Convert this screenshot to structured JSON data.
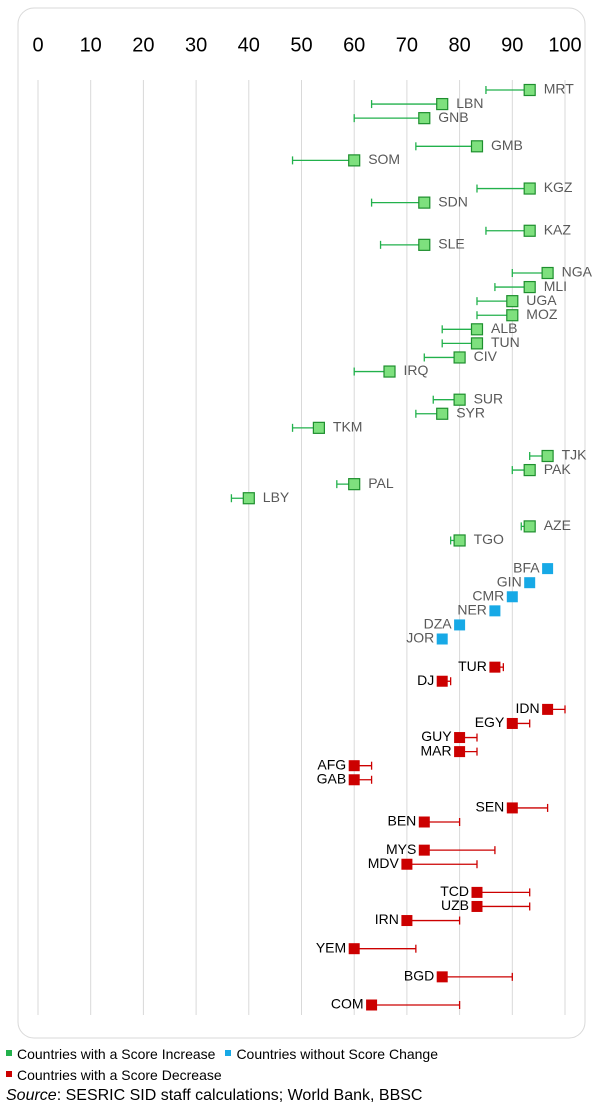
{
  "chart_data": {
    "type": "dotchange",
    "xlim": [
      0,
      100
    ],
    "xticks": [
      0,
      10,
      20,
      30,
      40,
      50,
      60,
      70,
      80,
      90,
      100
    ],
    "grid": true,
    "categories": [
      "MRT",
      "LBN",
      "GNB",
      null,
      "GMB",
      "SOM",
      null,
      "KGZ",
      "SDN",
      null,
      "KAZ",
      "SLE",
      null,
      "NGA",
      "MLI",
      "UGA",
      "MOZ",
      "ALB",
      "TUN",
      "CIV",
      "IRQ",
      null,
      "SUR",
      "SYR",
      "TKM",
      null,
      "TJK",
      "PAK",
      "PAL",
      "LBY",
      null,
      "AZE",
      "TGO",
      null,
      "BFA",
      "GIN",
      "CMR",
      "NER",
      "DZA",
      "JOR",
      null,
      "TUR",
      "DJ",
      null,
      "IDN",
      "EGY",
      "GUY",
      "MAR",
      "AFG",
      "GAB",
      null,
      "SEN",
      "BEN",
      null,
      "MYS",
      "MDV",
      null,
      "TCD",
      "UZB",
      "IRN",
      null,
      "YEM",
      null,
      "BGD",
      null,
      "COM"
    ],
    "series": [
      {
        "name": "Countries with a Score Increase",
        "color": "#22b14c",
        "values": [
          93.3,
          76.7,
          73.3,
          null,
          83.3,
          60,
          null,
          93.3,
          73.3,
          null,
          93.3,
          73.3,
          null,
          96.7,
          93.3,
          90,
          90,
          83.3,
          83.3,
          80,
          66.7,
          null,
          80,
          76.7,
          53.3,
          null,
          96.7,
          93.3,
          60,
          40,
          null,
          93.3,
          80,
          null,
          null,
          null,
          null,
          null,
          null,
          null,
          null,
          null,
          null,
          null,
          null,
          null,
          null,
          null,
          null,
          null,
          null,
          null,
          null,
          null,
          null,
          null,
          null,
          null,
          null,
          null,
          null,
          null,
          null,
          null,
          null,
          null
        ],
        "previous": [
          85,
          63.3,
          60,
          null,
          71.7,
          48.3,
          null,
          83.3,
          63.3,
          null,
          85,
          65,
          null,
          90,
          86.7,
          83.3,
          83.3,
          76.7,
          76.7,
          73.3,
          60,
          null,
          75,
          71.7,
          48.3,
          null,
          93.3,
          90,
          56.7,
          36.7,
          null,
          91.7,
          78.3,
          null,
          null,
          null,
          null,
          null,
          null,
          null,
          null,
          null,
          null,
          null,
          null,
          null,
          null,
          null,
          null,
          null,
          null,
          null,
          null,
          null,
          null,
          null,
          null,
          null,
          null,
          null,
          null,
          null,
          null,
          null,
          null,
          null
        ]
      },
      {
        "name": "Countries without Score Change",
        "color": "#17a9e6",
        "values": [
          null,
          null,
          null,
          null,
          null,
          null,
          null,
          null,
          null,
          null,
          null,
          null,
          null,
          null,
          null,
          null,
          null,
          null,
          null,
          null,
          null,
          null,
          null,
          null,
          null,
          null,
          null,
          null,
          null,
          null,
          null,
          null,
          null,
          null,
          96.7,
          93.3,
          90,
          86.7,
          80,
          76.7,
          null,
          null,
          null,
          null,
          null,
          null,
          null,
          null,
          null,
          null,
          null,
          null,
          null,
          null,
          null,
          null,
          null,
          null,
          null,
          null,
          null,
          null,
          null,
          null,
          null,
          null
        ]
      },
      {
        "name": "Countries with a Score Decrease",
        "color": "#cc0000",
        "values": [
          null,
          null,
          null,
          null,
          null,
          null,
          null,
          null,
          null,
          null,
          null,
          null,
          null,
          null,
          null,
          null,
          null,
          null,
          null,
          null,
          null,
          null,
          null,
          null,
          null,
          null,
          null,
          null,
          null,
          null,
          null,
          null,
          null,
          null,
          null,
          null,
          null,
          null,
          null,
          null,
          null,
          86.7,
          76.7,
          null,
          96.7,
          90,
          80,
          80,
          60,
          60,
          null,
          90,
          73.3,
          null,
          73.3,
          70,
          null,
          83.3,
          83.3,
          70,
          null,
          60,
          null,
          76.7,
          null,
          63.3
        ],
        "previous": [
          null,
          null,
          null,
          null,
          null,
          null,
          null,
          null,
          null,
          null,
          null,
          null,
          null,
          null,
          null,
          null,
          null,
          null,
          null,
          null,
          null,
          null,
          null,
          null,
          null,
          null,
          null,
          null,
          null,
          null,
          null,
          null,
          null,
          null,
          null,
          null,
          null,
          null,
          null,
          null,
          null,
          88.3,
          78.3,
          null,
          100,
          93.3,
          83.3,
          83.3,
          63.3,
          63.3,
          null,
          96.7,
          80,
          null,
          86.7,
          83.3,
          null,
          93.3,
          93.3,
          80,
          null,
          71.7,
          null,
          90,
          null,
          80
        ]
      }
    ],
    "source": {
      "label": "Source",
      "text": ": SESRIC SID staff calculations; World Bank, BBSC"
    }
  }
}
